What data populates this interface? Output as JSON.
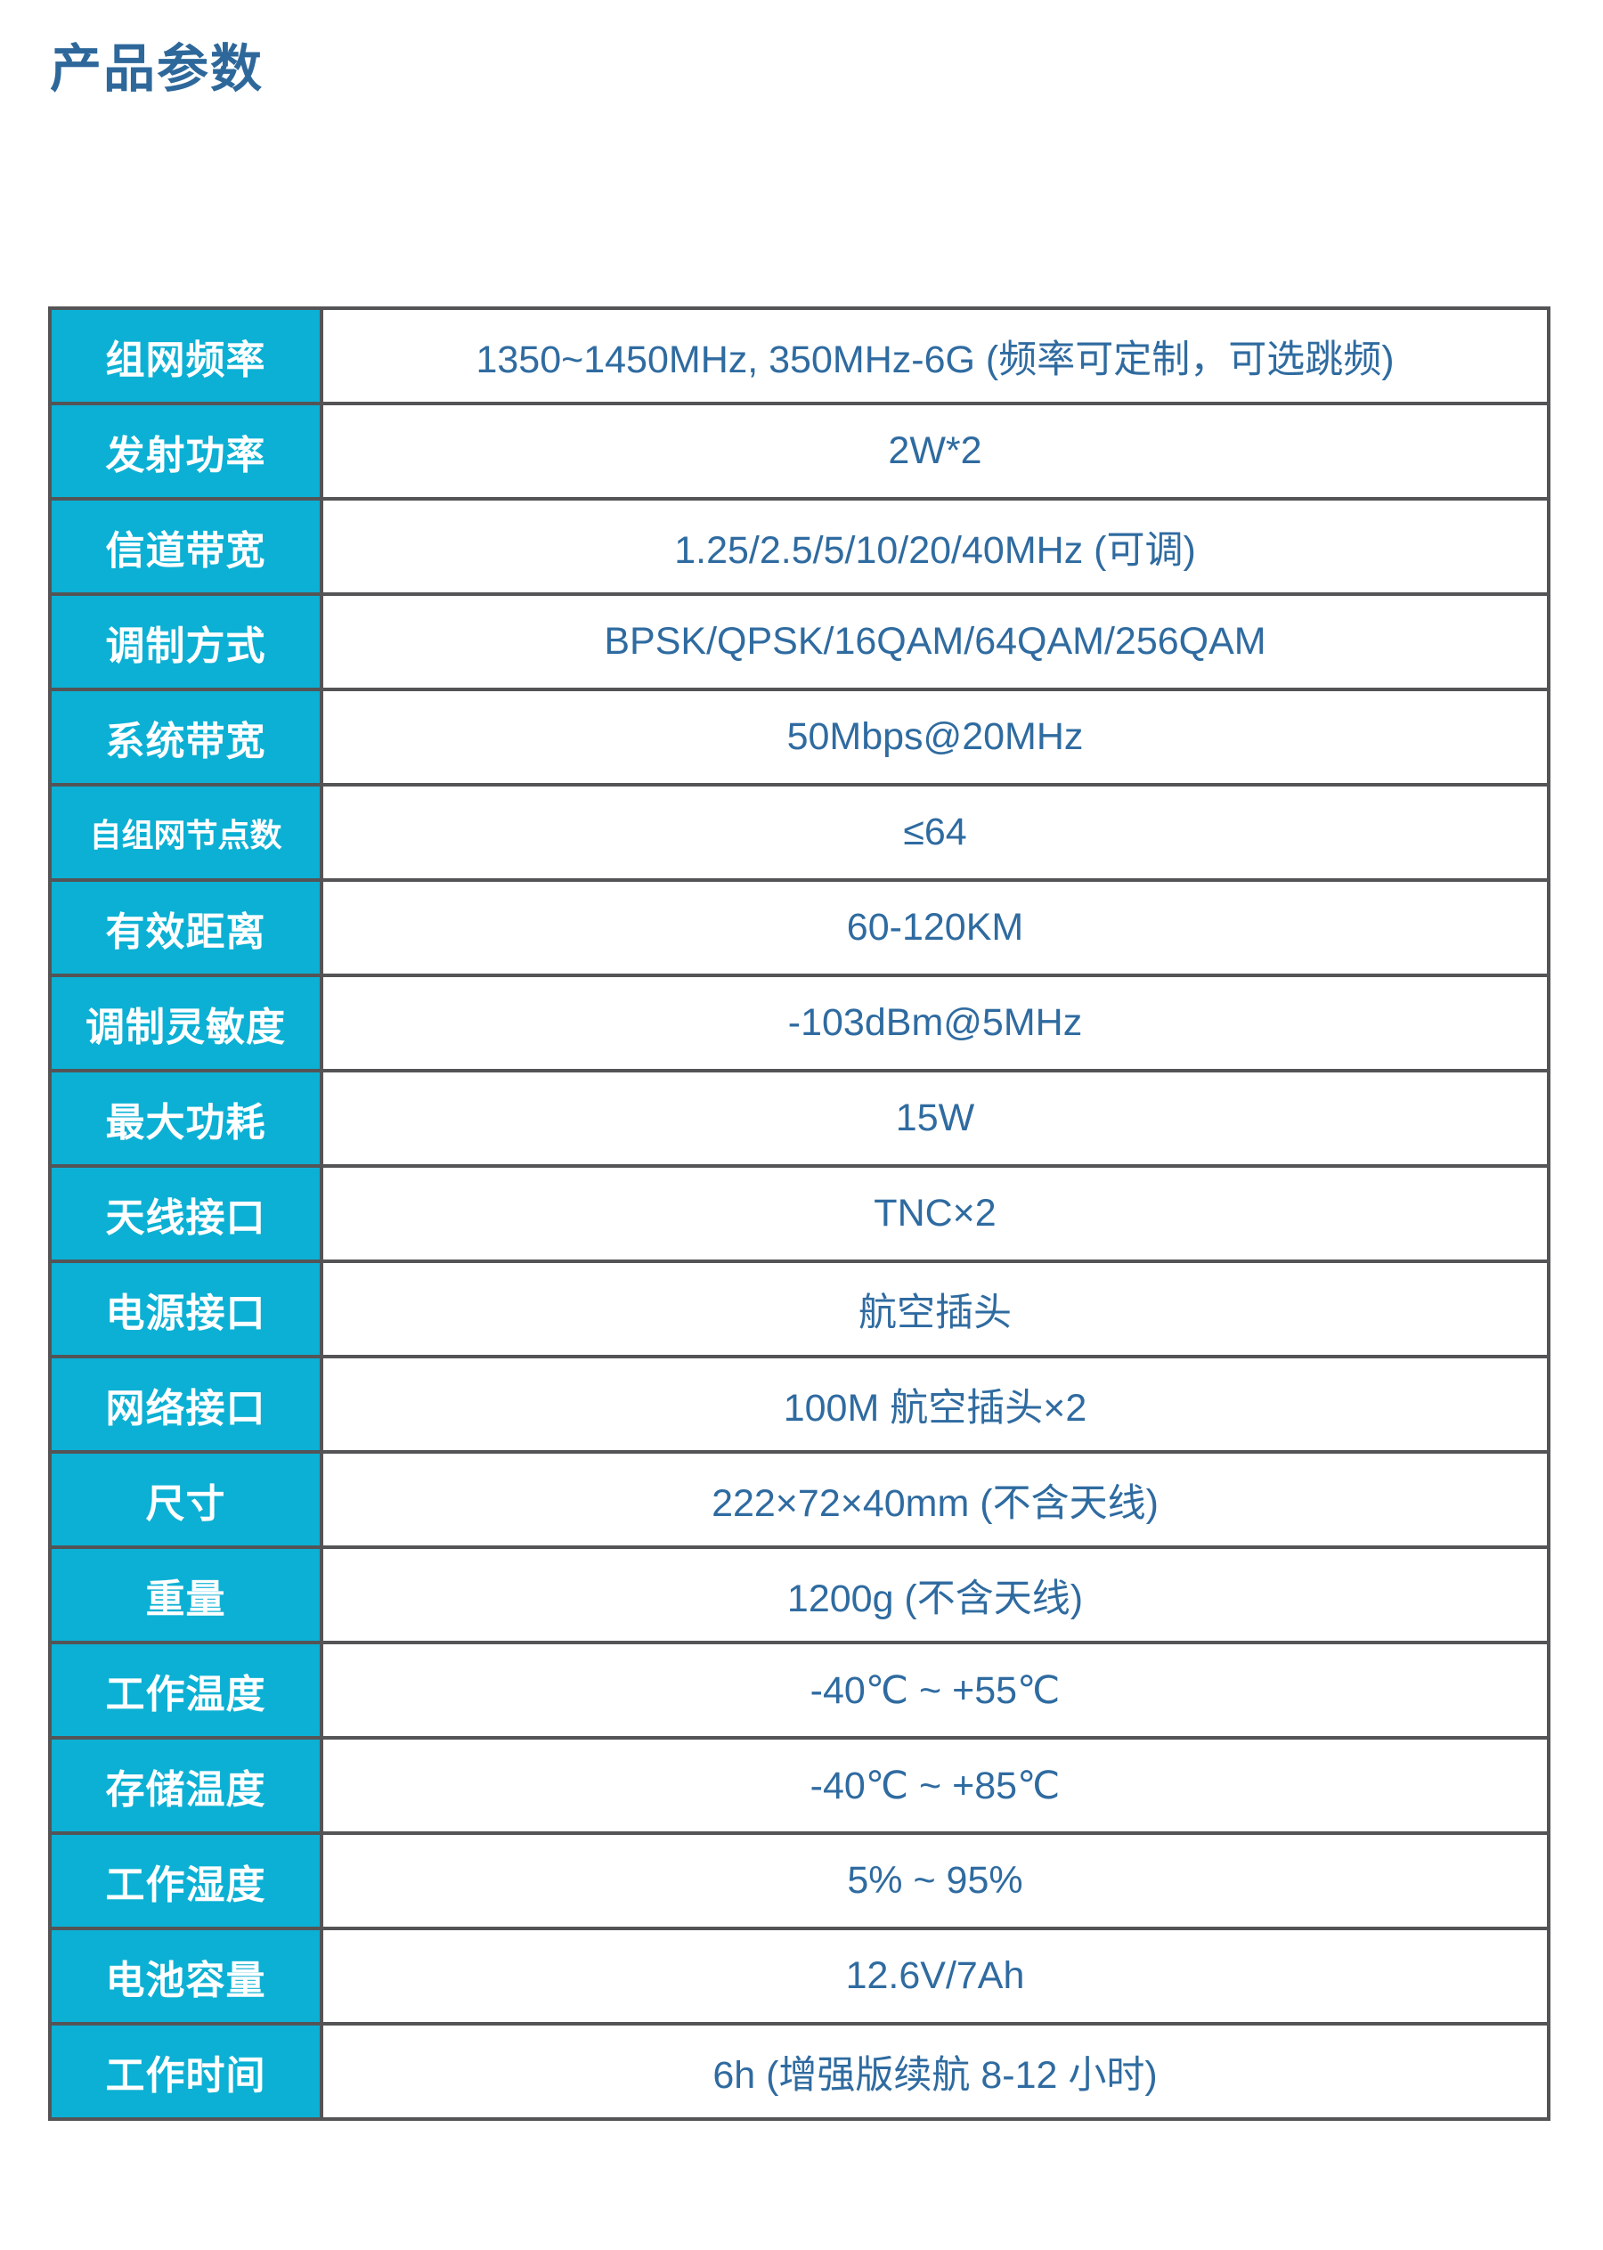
{
  "page": {
    "title": "产品参数"
  },
  "colors": {
    "accent": "#0CB0D4",
    "border": "#545456",
    "title_text": "#2E689B",
    "value_text": "#2F6BA0",
    "header_text": "#FFFFFF"
  },
  "spec_table": {
    "rows": [
      {
        "label": "组网频率",
        "value": "1350~1450MHz, 350MHz-6G (频率可定制，可选跳频)"
      },
      {
        "label": "发射功率",
        "value": "2W*2"
      },
      {
        "label": "信道带宽",
        "value": "1.25/2.5/5/10/20/40MHz (可调)"
      },
      {
        "label": "调制方式",
        "value": "BPSK/QPSK/16QAM/64QAM/256QAM"
      },
      {
        "label": "系统带宽",
        "value": "50Mbps@20MHz"
      },
      {
        "label": "自组网节点数",
        "value": "≤64"
      },
      {
        "label": "有效距离",
        "value": "60-120KM"
      },
      {
        "label": "调制灵敏度",
        "value": "-103dBm@5MHz"
      },
      {
        "label": "最大功耗",
        "value": "15W"
      },
      {
        "label": "天线接口",
        "value": "TNC×2"
      },
      {
        "label": "电源接口",
        "value": "航空插头"
      },
      {
        "label": "网络接口",
        "value": "100M 航空插头×2"
      },
      {
        "label": "尺寸",
        "value": "222×72×40mm (不含天线)"
      },
      {
        "label": "重量",
        "value": "1200g (不含天线)"
      },
      {
        "label": "工作温度",
        "value": "-40℃ ~ +55℃"
      },
      {
        "label": "存储温度",
        "value": "-40℃ ~ +85℃"
      },
      {
        "label": "工作湿度",
        "value": "5% ~ 95%"
      },
      {
        "label": "电池容量",
        "value": "12.6V/7Ah"
      },
      {
        "label": "工作时间",
        "value": "6h (增强版续航 8-12 小时)"
      }
    ]
  }
}
